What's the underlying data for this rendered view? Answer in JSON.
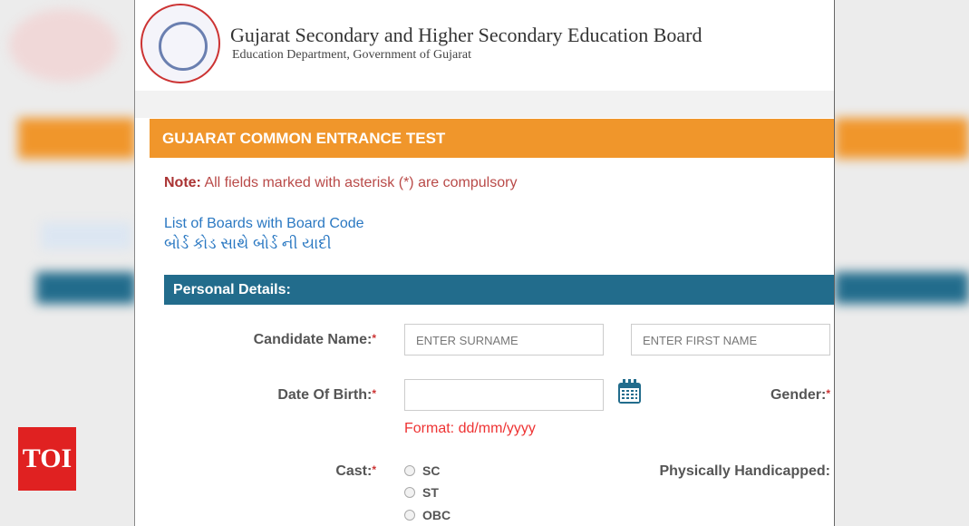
{
  "header": {
    "title": "Gujarat Secondary and Higher Secondary Education Board",
    "subtitle": "Education Department, Government of Gujarat",
    "logo_text": "Gujarat Secondary and Higher Secondary Education Board seal"
  },
  "banner": {
    "title": "GUJARAT COMMON ENTRANCE TEST"
  },
  "note": {
    "label": "Note:",
    "text": "All fields marked with asterisk (*) are compulsory"
  },
  "links": {
    "boards_en": "List of Boards with Board Code",
    "boards_gu": "બોર્ડ કોડ સાથે બોર્ડ ની યાદી"
  },
  "section": {
    "title": "Personal Details:"
  },
  "form": {
    "candidate_name": "Candidate Name:",
    "surname_placeholder": "ENTER SURNAME",
    "firstname_placeholder": "ENTER FIRST NAME",
    "dob": "Date Of Birth:",
    "dob_format": "Format: dd/mm/yyyy",
    "gender": "Gender:",
    "cast": "Cast:",
    "cast_options": [
      "SC",
      "ST",
      "OBC"
    ],
    "handicapped": "Physically Handicapped:",
    "required": "*"
  },
  "watermark": {
    "text": "TOI"
  },
  "colors": {
    "orange": "#f0962b",
    "section": "#226c8c",
    "accent_red": "#b94a48",
    "link": "#2a78c2"
  }
}
